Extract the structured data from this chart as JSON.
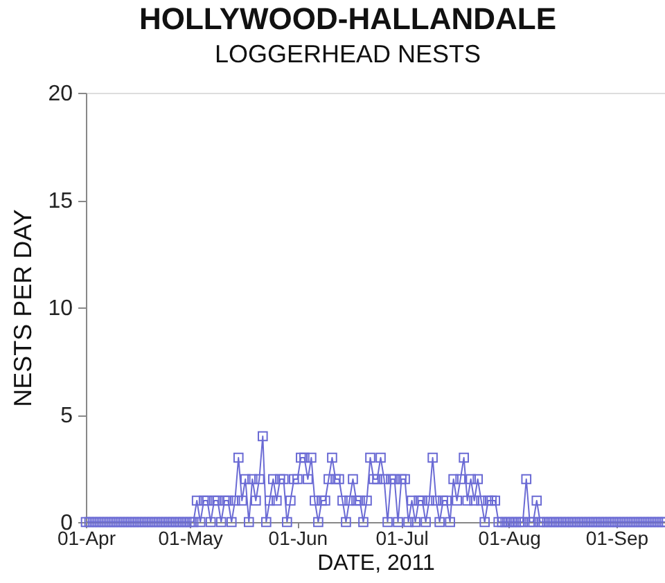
{
  "chart_data": {
    "type": "line",
    "title": "HOLLYWOOD-HALLANDALE",
    "subtitle": "LOGGERHEAD NESTS",
    "xlabel": "DATE, 2011",
    "ylabel": "NESTS PER DAY",
    "x": [
      "2011-04-01",
      "2011-04-02",
      "2011-04-03",
      "2011-04-04",
      "2011-04-05",
      "2011-04-06",
      "2011-04-07",
      "2011-04-08",
      "2011-04-09",
      "2011-04-10",
      "2011-04-11",
      "2011-04-12",
      "2011-04-13",
      "2011-04-14",
      "2011-04-15",
      "2011-04-16",
      "2011-04-17",
      "2011-04-18",
      "2011-04-19",
      "2011-04-20",
      "2011-04-21",
      "2011-04-22",
      "2011-04-23",
      "2011-04-24",
      "2011-04-25",
      "2011-04-26",
      "2011-04-27",
      "2011-04-28",
      "2011-04-29",
      "2011-04-30",
      "2011-05-01",
      "2011-05-02",
      "2011-05-03",
      "2011-05-04",
      "2011-05-05",
      "2011-05-06",
      "2011-05-07",
      "2011-05-08",
      "2011-05-09",
      "2011-05-10",
      "2011-05-11",
      "2011-05-12",
      "2011-05-13",
      "2011-05-14",
      "2011-05-15",
      "2011-05-16",
      "2011-05-17",
      "2011-05-18",
      "2011-05-19",
      "2011-05-20",
      "2011-05-21",
      "2011-05-22",
      "2011-05-23",
      "2011-05-24",
      "2011-05-25",
      "2011-05-26",
      "2011-05-27",
      "2011-05-28",
      "2011-05-29",
      "2011-05-30",
      "2011-05-31",
      "2011-06-01",
      "2011-06-02",
      "2011-06-03",
      "2011-06-04",
      "2011-06-05",
      "2011-06-06",
      "2011-06-07",
      "2011-06-08",
      "2011-06-09",
      "2011-06-10",
      "2011-06-11",
      "2011-06-12",
      "2011-06-13",
      "2011-06-14",
      "2011-06-15",
      "2011-06-16",
      "2011-06-17",
      "2011-06-18",
      "2011-06-19",
      "2011-06-20",
      "2011-06-21",
      "2011-06-22",
      "2011-06-23",
      "2011-06-24",
      "2011-06-25",
      "2011-06-26",
      "2011-06-27",
      "2011-06-28",
      "2011-06-29",
      "2011-06-30",
      "2011-07-01",
      "2011-07-02",
      "2011-07-03",
      "2011-07-04",
      "2011-07-05",
      "2011-07-06",
      "2011-07-07",
      "2011-07-08",
      "2011-07-09",
      "2011-07-10",
      "2011-07-11",
      "2011-07-12",
      "2011-07-13",
      "2011-07-14",
      "2011-07-15",
      "2011-07-16",
      "2011-07-17",
      "2011-07-18",
      "2011-07-19",
      "2011-07-20",
      "2011-07-21",
      "2011-07-22",
      "2011-07-23",
      "2011-07-24",
      "2011-07-25",
      "2011-07-26",
      "2011-07-27",
      "2011-07-28",
      "2011-07-29",
      "2011-07-30",
      "2011-07-31",
      "2011-08-01",
      "2011-08-02",
      "2011-08-03",
      "2011-08-04",
      "2011-08-05",
      "2011-08-06",
      "2011-08-07",
      "2011-08-08",
      "2011-08-09",
      "2011-08-10",
      "2011-08-11",
      "2011-08-12",
      "2011-08-13",
      "2011-08-14",
      "2011-08-15",
      "2011-08-16",
      "2011-08-17",
      "2011-08-18",
      "2011-08-19",
      "2011-08-20",
      "2011-08-21",
      "2011-08-22",
      "2011-08-23",
      "2011-08-24",
      "2011-08-25",
      "2011-08-26",
      "2011-08-27",
      "2011-08-28",
      "2011-08-29",
      "2011-08-30",
      "2011-08-31",
      "2011-09-01",
      "2011-09-02",
      "2011-09-03",
      "2011-09-04",
      "2011-09-05",
      "2011-09-06",
      "2011-09-07",
      "2011-09-08",
      "2011-09-09",
      "2011-09-10",
      "2011-09-11",
      "2011-09-12",
      "2011-09-13",
      "2011-09-14",
      "2011-09-15"
    ],
    "series": [
      {
        "color": "#6a6ad4",
        "values": [
          0,
          0,
          0,
          0,
          0,
          0,
          0,
          0,
          0,
          0,
          0,
          0,
          0,
          0,
          0,
          0,
          0,
          0,
          0,
          0,
          0,
          0,
          0,
          0,
          0,
          0,
          0,
          0,
          0,
          0,
          0,
          0,
          1,
          0,
          1,
          1,
          0,
          1,
          1,
          0,
          1,
          1,
          0,
          1,
          3,
          1,
          2,
          0,
          2,
          1,
          2,
          4,
          0,
          1,
          2,
          1,
          2,
          2,
          0,
          1,
          2,
          2,
          3,
          3,
          2,
          3,
          1,
          0,
          1,
          1,
          2,
          3,
          2,
          2,
          1,
          0,
          1,
          2,
          1,
          1,
          0,
          1,
          3,
          2,
          2,
          3,
          2,
          0,
          2,
          2,
          0,
          2,
          2,
          0,
          1,
          0,
          1,
          1,
          0,
          1,
          3,
          1,
          0,
          1,
          1,
          0,
          2,
          1,
          2,
          3,
          1,
          2,
          1,
          2,
          1,
          0,
          1,
          1,
          1,
          0,
          0,
          0,
          0,
          0,
          0,
          0,
          0,
          2,
          0,
          0,
          1,
          0,
          0,
          0,
          0,
          0,
          0,
          0,
          0,
          0,
          0,
          0,
          0,
          0,
          0,
          0,
          0,
          0,
          0,
          0,
          0,
          0,
          0,
          0,
          0,
          0,
          0,
          0,
          0,
          0,
          0,
          0,
          0,
          0,
          0,
          0,
          0,
          0
        ]
      }
    ],
    "xlim": [
      "2011-04-01",
      "2011-09-15"
    ],
    "xticks": [
      {
        "value": "2011-04-01",
        "label": "01-Apr"
      },
      {
        "value": "2011-05-01",
        "label": "01-May"
      },
      {
        "value": "2011-06-01",
        "label": "01-Jun"
      },
      {
        "value": "2011-07-01",
        "label": "01-Jul"
      },
      {
        "value": "2011-08-01",
        "label": "01-Aug"
      },
      {
        "value": "2011-09-01",
        "label": "01-Sep"
      }
    ],
    "ylim": [
      0,
      20
    ],
    "yticks": [
      0,
      5,
      10,
      15,
      20
    ],
    "marker": "square",
    "line_style": "solid"
  }
}
